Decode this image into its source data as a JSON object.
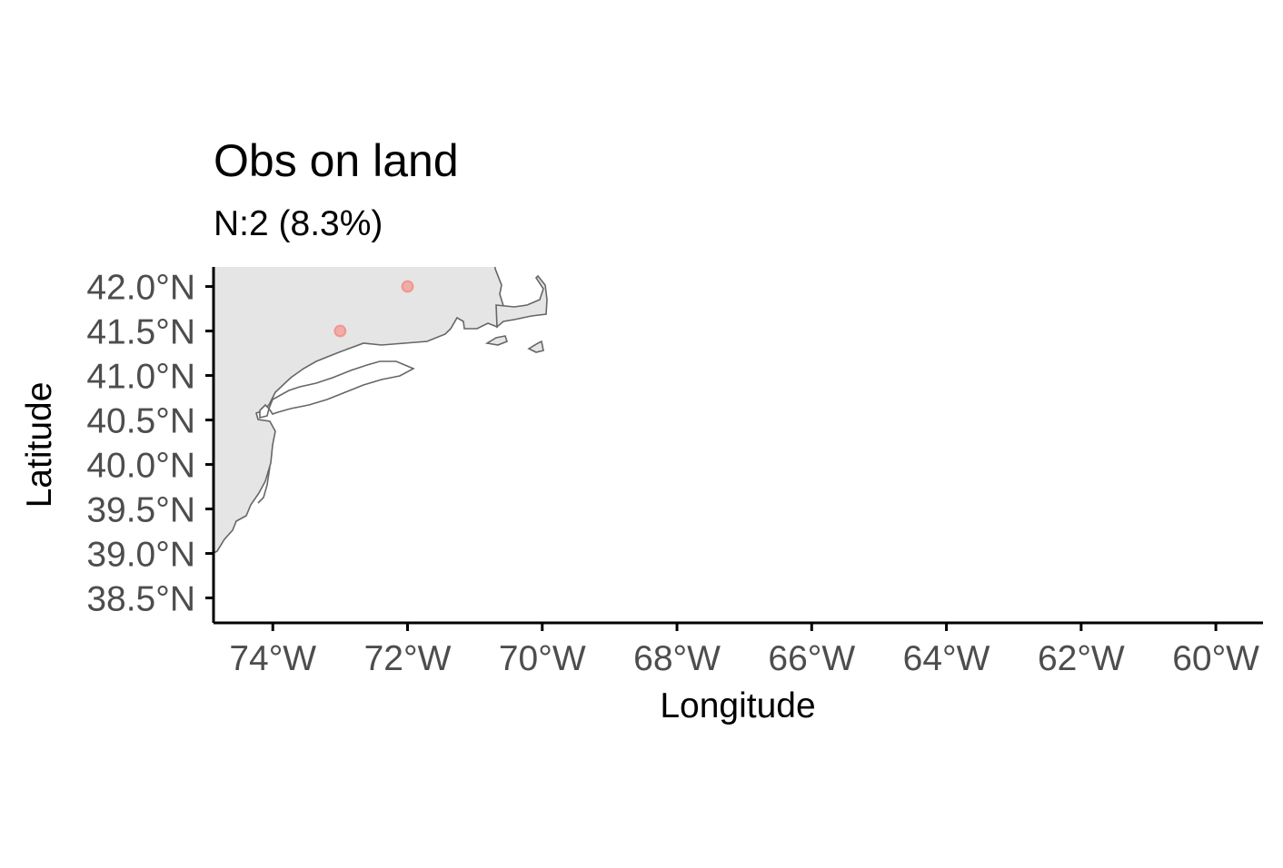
{
  "chart_data": {
    "type": "scatter",
    "title": "Obs on land",
    "subtitle": "N:2 (8.3%)",
    "xlabel": "Longitude",
    "ylabel": "Latitude",
    "xlim": [
      -74.88,
      -59.3
    ],
    "ylim": [
      38.22,
      42.22
    ],
    "x_ticks": [
      {
        "value": -74,
        "label": "74°W"
      },
      {
        "value": -72,
        "label": "72°W"
      },
      {
        "value": -70,
        "label": "70°W"
      },
      {
        "value": -68,
        "label": "68°W"
      },
      {
        "value": -66,
        "label": "66°W"
      },
      {
        "value": -64,
        "label": "64°W"
      },
      {
        "value": -62,
        "label": "62°W"
      },
      {
        "value": -60,
        "label": "60°W"
      }
    ],
    "y_ticks": [
      {
        "value": 42.0,
        "label": "42.0°N"
      },
      {
        "value": 41.5,
        "label": "41.5°N"
      },
      {
        "value": 41.0,
        "label": "41.0°N"
      },
      {
        "value": 40.5,
        "label": "40.5°N"
      },
      {
        "value": 40.0,
        "label": "40.0°N"
      },
      {
        "value": 39.5,
        "label": "39.5°N"
      },
      {
        "value": 39.0,
        "label": "39.0°N"
      },
      {
        "value": 38.5,
        "label": "38.5°N"
      }
    ],
    "points": [
      {
        "lon": -72.0,
        "lat": 42.0
      },
      {
        "lon": -73.0,
        "lat": 41.5
      }
    ],
    "grid": false,
    "legend": "none",
    "colors": {
      "point": "#f8766d",
      "land_fill": "#e5e5e5",
      "coastline": "#666666",
      "axis": "#000000"
    }
  }
}
